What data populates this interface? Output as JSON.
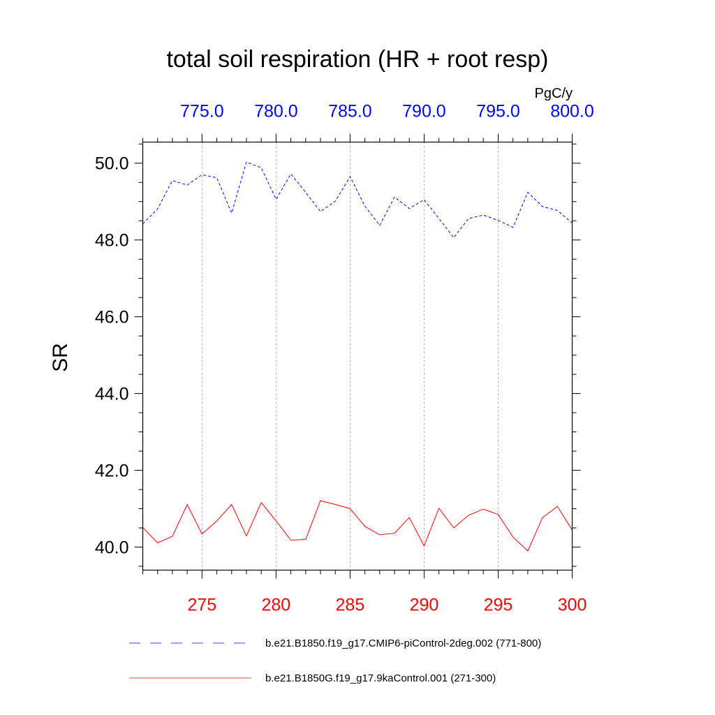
{
  "chart_data": {
    "type": "line",
    "title": "total soil respiration (HR + root resp)",
    "units": "PgC/y",
    "ylabel": "SR",
    "ylim": [
      39.4,
      50.55
    ],
    "yticks": [
      40.0,
      42.0,
      44.0,
      46.0,
      48.0,
      50.0
    ],
    "ytick_labels": [
      "40.0",
      "42.0",
      "44.0",
      "46.0",
      "48.0",
      "50.0"
    ],
    "x_bottom": {
      "range": [
        271,
        300
      ],
      "ticks": [
        275,
        280,
        285,
        290,
        295,
        300
      ],
      "labels": [
        "275",
        "280",
        "285",
        "290",
        "295",
        "300"
      ],
      "color": "#ff0000"
    },
    "x_top": {
      "range": [
        771,
        800
      ],
      "ticks": [
        775,
        780,
        785,
        790,
        795,
        800
      ],
      "labels": [
        "775.0",
        "780.0",
        "785.0",
        "790.0",
        "795.0",
        "800.0"
      ],
      "color": "#0000ff"
    },
    "grid": true,
    "series": [
      {
        "name": "b.e21.B1850.f19_g17.CMIP6-piControl-2deg.002 (771-800)",
        "axis": "top",
        "color": "#0000ff",
        "style": "dashed",
        "x": [
          771,
          772,
          773,
          774,
          775,
          776,
          777,
          778,
          779,
          780,
          781,
          782,
          783,
          784,
          785,
          786,
          787,
          788,
          789,
          790,
          791,
          792,
          793,
          794,
          795,
          796,
          797,
          798,
          799,
          800
        ],
        "values": [
          48.42,
          48.81,
          49.55,
          49.43,
          49.7,
          49.62,
          48.7,
          50.03,
          49.88,
          49.06,
          49.72,
          49.24,
          48.74,
          49.01,
          49.65,
          48.88,
          48.38,
          49.12,
          48.82,
          49.05,
          48.56,
          48.06,
          48.56,
          48.65,
          48.51,
          48.33,
          49.24,
          48.87,
          48.77,
          48.44
        ]
      },
      {
        "name": "b.e21.B1850G.f19_g17.9kaControl.001 (271-300)",
        "axis": "bottom",
        "color": "#ff0000",
        "style": "solid",
        "x": [
          271,
          272,
          273,
          274,
          275,
          276,
          277,
          278,
          279,
          280,
          281,
          282,
          283,
          284,
          285,
          286,
          287,
          288,
          289,
          290,
          291,
          292,
          293,
          294,
          295,
          296,
          297,
          298,
          299,
          300
        ],
        "values": [
          40.51,
          40.11,
          40.28,
          41.11,
          40.34,
          40.68,
          41.11,
          40.29,
          41.16,
          40.68,
          40.18,
          40.2,
          41.21,
          41.11,
          41.0,
          40.54,
          40.32,
          40.36,
          40.77,
          40.03,
          41.01,
          40.5,
          40.83,
          40.99,
          40.85,
          40.26,
          39.9,
          40.77,
          41.06,
          40.44
        ]
      }
    ],
    "legend": {
      "placement": "bottom"
    }
  }
}
